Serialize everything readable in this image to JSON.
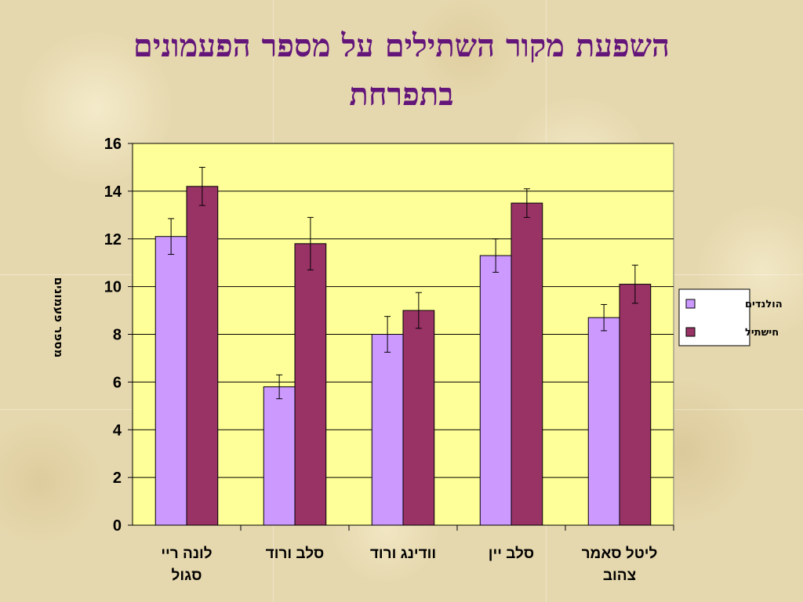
{
  "title": "השפעת מקור השתילים על מספר הפעמונים בתפרחת",
  "colors": {
    "title": "#63157a",
    "plot_bg": "#ffff99",
    "series1": "#cc99ff",
    "series2": "#993366",
    "gridline": "#000000"
  },
  "chart_data": {
    "type": "bar",
    "title": "",
    "xlabel": "",
    "ylabel": "מספר פעמונים",
    "ylim": [
      0,
      16
    ],
    "yticks": [
      0,
      2,
      4,
      6,
      8,
      10,
      12,
      14,
      16
    ],
    "grid": true,
    "legend_position": "right",
    "categories": [
      [
        "לונה ריי",
        "סגול"
      ],
      [
        "סלב ורוד"
      ],
      [
        "וודינג ורוד"
      ],
      [
        "סלב יין"
      ],
      [
        "ליטל סאמר",
        "צהוב"
      ]
    ],
    "series": [
      {
        "name": "הולנדים",
        "values": [
          12.1,
          5.8,
          8.0,
          11.3,
          8.7
        ],
        "errors": [
          0.75,
          0.5,
          0.75,
          0.7,
          0.55
        ]
      },
      {
        "name": "חישתיל",
        "values": [
          14.2,
          11.8,
          9.0,
          13.5,
          10.1
        ],
        "errors": [
          0.8,
          1.1,
          0.75,
          0.6,
          0.8
        ]
      }
    ]
  }
}
